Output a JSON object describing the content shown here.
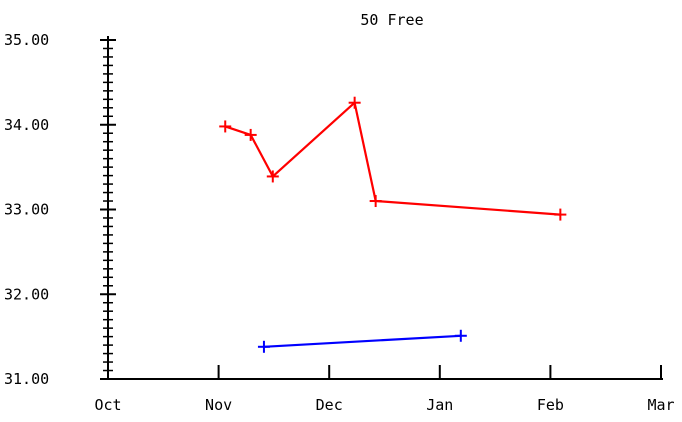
{
  "chart_data": {
    "type": "line",
    "title": "50 Free",
    "xlabel": "",
    "ylabel": "",
    "x_tick_labels": [
      "Oct",
      "Nov",
      "Dec",
      "Jan",
      "Feb",
      "Mar"
    ],
    "y_tick_labels": [
      "31.00",
      "32.00",
      "33.00",
      "34.00",
      "35.00"
    ],
    "ylim": [
      31.0,
      35.0
    ],
    "xlim_months": [
      0,
      5
    ],
    "grid": false,
    "legend": "none",
    "series": [
      {
        "color": "#ff0000",
        "marker": "plus",
        "points": [
          {
            "x": 1.06,
            "y": 33.98
          },
          {
            "x": 1.29,
            "y": 33.88
          },
          {
            "x": 1.49,
            "y": 33.39
          },
          {
            "x": 2.23,
            "y": 34.26
          },
          {
            "x": 2.42,
            "y": 33.1
          },
          {
            "x": 4.09,
            "y": 32.94
          }
        ]
      },
      {
        "color": "#0000ff",
        "marker": "plus",
        "points": [
          {
            "x": 1.41,
            "y": 31.38
          },
          {
            "x": 3.19,
            "y": 31.51
          }
        ]
      }
    ]
  }
}
